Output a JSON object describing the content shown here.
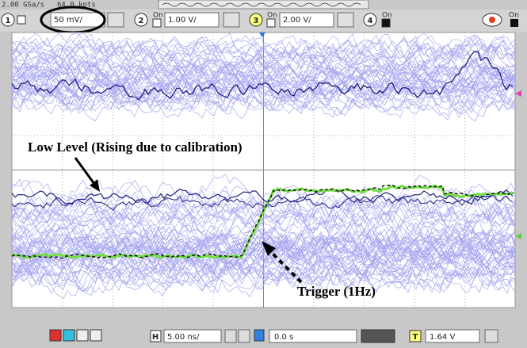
{
  "header": {
    "sample_rate": "2.00 GSa/s",
    "memory": "64.0 kpts"
  },
  "channels": [
    {
      "number": "1",
      "scale": "50 mV/"
    },
    {
      "number": "2",
      "on": "On",
      "scale": "1.00 V/"
    },
    {
      "number": "3",
      "on": "On",
      "scale": "2.00 V/"
    },
    {
      "number": "4",
      "on": "On"
    }
  ],
  "display_on": "On",
  "annotations": {
    "low_level": "Low Level (Rising due to calibration)",
    "trigger": "Trigger (1Hz)"
  },
  "footer": {
    "timebase_key": "H",
    "timebase": "5.00 ns/",
    "delay": "0.0 s",
    "trigger_key": "T",
    "trigger_level": "1.64 V"
  }
}
